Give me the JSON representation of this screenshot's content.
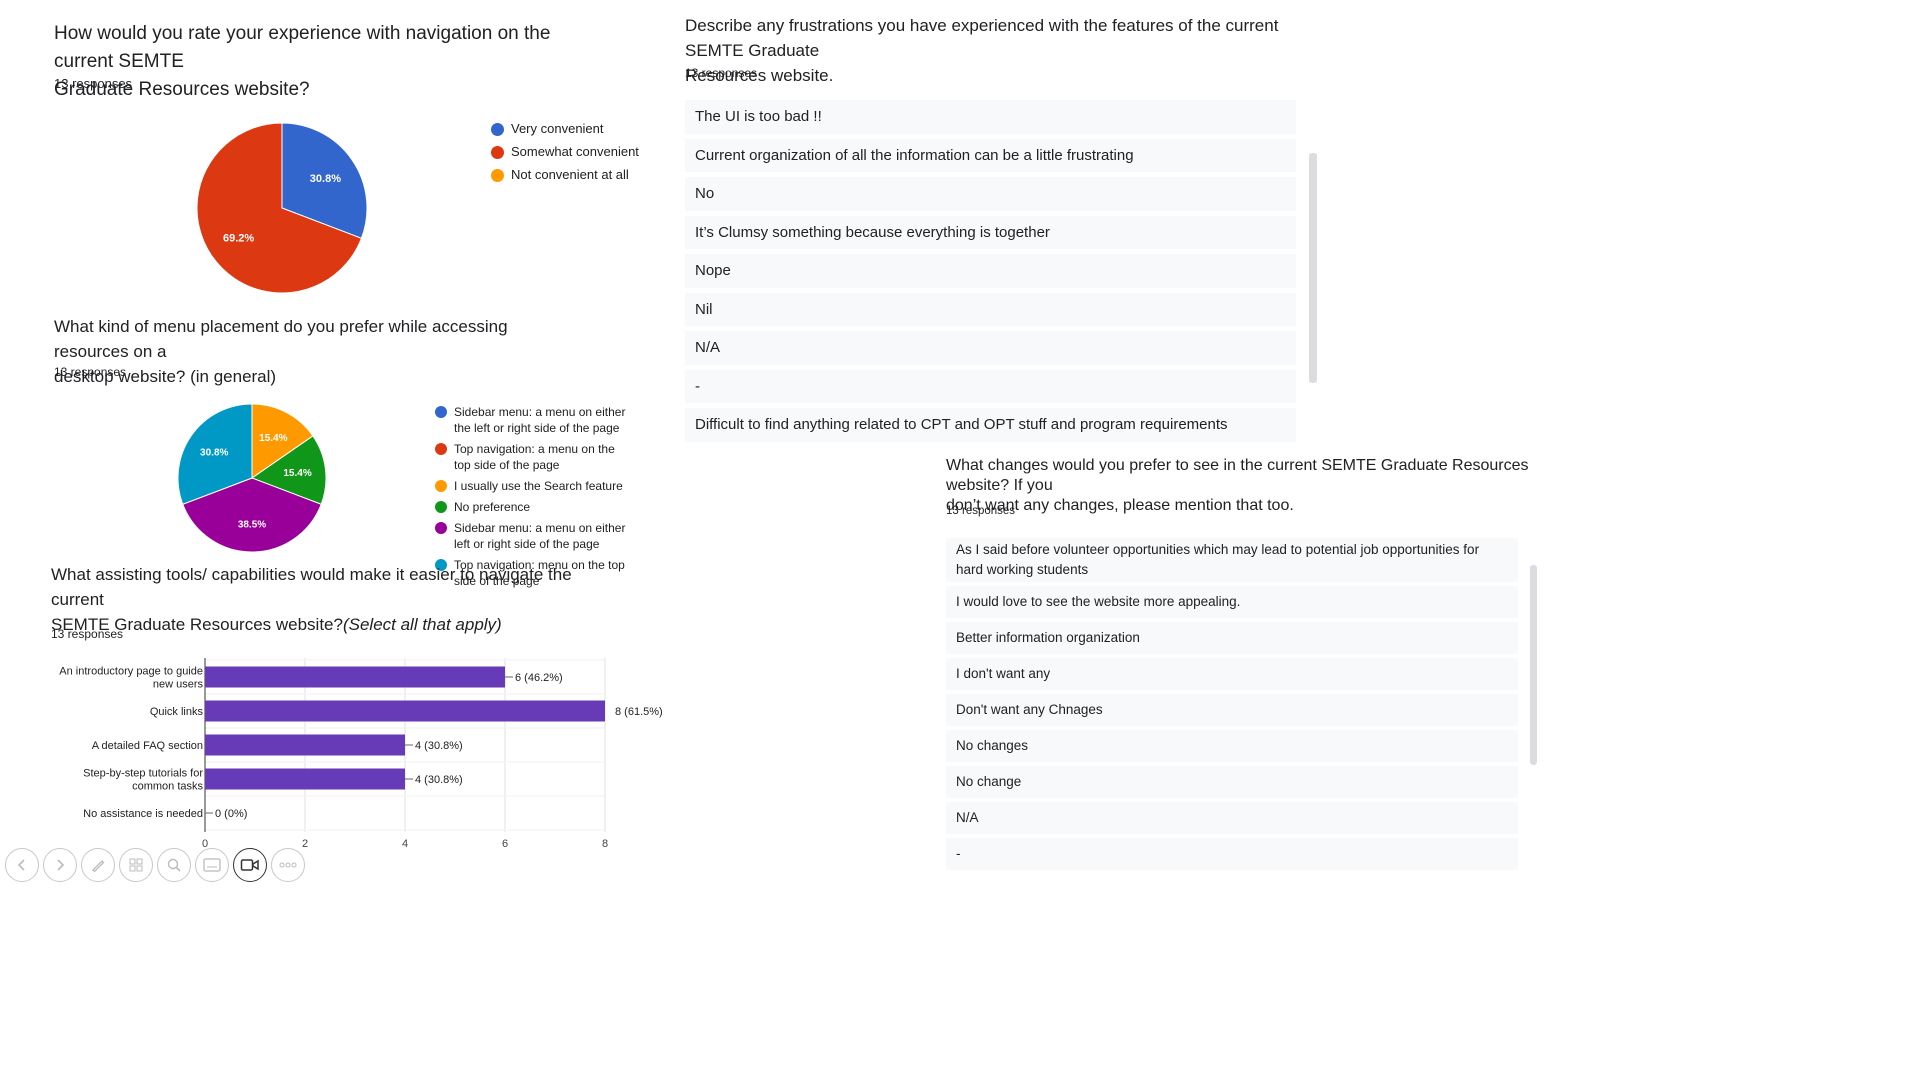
{
  "q1": {
    "title_line1": "How would you rate your experience with navigation on the current SEMTE",
    "title_line2": "Graduate Resources website?",
    "responses": "13 responses",
    "legend": [
      {
        "label": "Very convenient",
        "color": "#3366cc"
      },
      {
        "label": "Somewhat convenient",
        "color": "#dc3912"
      },
      {
        "label": "Not convenient at all",
        "color": "#ff9900"
      }
    ]
  },
  "q2": {
    "title_line1": "What kind of menu placement do you prefer while accessing resources on a",
    "title_line2": "desktop website? (in general)",
    "responses": "13 responses",
    "legend": [
      {
        "label": "Sidebar menu: a menu on either the left or right side of the page",
        "color": "#3366cc"
      },
      {
        "label": "Top navigation: a menu on the top side of the page",
        "color": "#dc3912"
      },
      {
        "label": "I usually use the Search feature",
        "color": "#ff9900"
      },
      {
        "label": "No preference",
        "color": "#109618"
      },
      {
        "label": "Sidebar menu: a menu on either left or right side of the page",
        "color": "#990099"
      },
      {
        "label": "Top navigation: menu on the top side of the page",
        "color": "#0099c6"
      }
    ]
  },
  "q3": {
    "title_line1": "What assisting tools/ capabilities would make it easier to navigate the current",
    "title_line2_plain": "SEMTE Graduate Resources website?",
    "title_line2_italic": "(Select all that apply)",
    "responses": "13 responses"
  },
  "q4": {
    "title_line1": "Describe any frustrations you have experienced with the features of the  current SEMTE Graduate",
    "title_line2": "Resources website.",
    "responses": "13 responses",
    "answers": [
      "The UI is too bad !!",
      "Current organization of all the information can be a little frustrating",
      "No",
      "It’s Clumsy something because everything is together",
      "Nope",
      "Nil",
      "N/A",
      "-",
      "Difficult to find anything related to CPT and OPT stuff and program requirements"
    ]
  },
  "q5": {
    "title_line1": "What changes would you prefer to see in the  current SEMTE Graduate Resources website? If you",
    "title_line2": "don’t want any changes, please mention that too.",
    "responses": "13 responses",
    "answers": [
      "As I said before volunteer opportunities which may lead to potential job opportunities for hard working students",
      "I would love to see the website more appealing.",
      "Better information organization",
      "I don't want any",
      "Don't want any Chnages",
      "No changes",
      "No change",
      "N/A",
      "-"
    ]
  },
  "toolbar": {
    "icons": [
      "back-icon",
      "forward-icon",
      "pen-icon",
      "pages-icon",
      "zoom-icon",
      "subtitles-icon",
      "video-icon",
      "more-icon"
    ]
  },
  "chart_data": [
    {
      "type": "pie",
      "title": "How would you rate your experience with navigation on the current SEMTE Graduate Resources website?",
      "labels": [
        "Very convenient",
        "Somewhat convenient",
        "Not convenient at all"
      ],
      "values": [
        30.8,
        69.2,
        0
      ],
      "value_labels": [
        "30.8%",
        "69.2%",
        ""
      ],
      "colors": [
        "#3366cc",
        "#dc3912",
        "#ff9900"
      ],
      "legend": "right"
    },
    {
      "type": "pie",
      "title": "What kind of menu placement do you prefer while accessing resources on a desktop website? (in general)",
      "labels": [
        "Sidebar menu: a menu on either the left or right side of the page",
        "Top navigation: a menu on the top side of the page",
        "I usually use the Search feature",
        "No preference",
        "Sidebar menu: a menu on either left or right side of the page",
        "Top navigation: menu on the top side of the page"
      ],
      "values": [
        0,
        0,
        15.4,
        15.4,
        38.5,
        30.8
      ],
      "value_labels": [
        "",
        "",
        "15.4%",
        "15.4%",
        "38.5%",
        "30.8%"
      ],
      "colors": [
        "#3366cc",
        "#dc3912",
        "#ff9900",
        "#109618",
        "#990099",
        "#0099c6"
      ],
      "legend": "right"
    },
    {
      "type": "bar",
      "orientation": "horizontal",
      "title": "What assisting tools/ capabilities would make it easier to navigate the current SEMTE Graduate Resources website?(Select all that apply)",
      "categories": [
        [
          "An introductory page to guide",
          "new users"
        ],
        [
          "Quick links"
        ],
        [
          "A detailed FAQ section"
        ],
        [
          "Step-by-step tutorials for",
          "common tasks"
        ],
        [
          "No assistance is needed"
        ]
      ],
      "values": [
        6,
        8,
        4,
        4,
        0
      ],
      "value_labels": [
        "6 (46.2%)",
        "8 (61.5%)",
        "4 (30.8%)",
        "4 (30.8%)",
        "0 (0%)"
      ],
      "xlim": [
        0,
        8
      ],
      "xticks": [
        0,
        2,
        4,
        6,
        8
      ],
      "color": "#673ab7"
    }
  ]
}
